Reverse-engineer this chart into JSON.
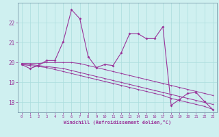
{
  "xlabel": "Windchill (Refroidissement éolien,°C)",
  "bg_color": "#cff0f0",
  "grid_color": "#aadddd",
  "line_color": "#993399",
  "spine_color": "#7799aa",
  "xlim": [
    -0.5,
    23.5
  ],
  "ylim": [
    17.5,
    23.0
  ],
  "yticks": [
    18,
    19,
    20,
    21,
    22
  ],
  "xticks": [
    0,
    1,
    2,
    3,
    4,
    5,
    6,
    7,
    8,
    9,
    10,
    11,
    12,
    13,
    14,
    15,
    16,
    17,
    18,
    19,
    20,
    21,
    22,
    23
  ],
  "series1": [
    19.9,
    19.7,
    19.85,
    20.1,
    20.1,
    21.05,
    22.65,
    22.2,
    20.3,
    19.75,
    19.9,
    19.85,
    20.5,
    21.45,
    21.45,
    21.2,
    21.2,
    21.8,
    17.85,
    18.15,
    18.45,
    18.5,
    18.05,
    17.65
  ],
  "series2": [
    19.95,
    19.95,
    19.95,
    20.0,
    20.0,
    20.0,
    20.0,
    19.95,
    19.85,
    19.75,
    19.65,
    19.55,
    19.45,
    19.35,
    19.25,
    19.15,
    19.05,
    18.95,
    18.85,
    18.75,
    18.65,
    18.55,
    18.45,
    18.35
  ],
  "series3": [
    19.95,
    19.9,
    19.85,
    19.8,
    19.75,
    19.7,
    19.6,
    19.5,
    19.4,
    19.3,
    19.2,
    19.1,
    19.0,
    18.9,
    18.8,
    18.7,
    18.6,
    18.5,
    18.4,
    18.3,
    18.2,
    18.1,
    18.0,
    17.9
  ],
  "series4": [
    19.9,
    19.85,
    19.8,
    19.75,
    19.65,
    19.55,
    19.45,
    19.35,
    19.25,
    19.15,
    19.05,
    18.95,
    18.85,
    18.75,
    18.65,
    18.55,
    18.45,
    18.35,
    18.2,
    18.1,
    18.0,
    17.9,
    17.8,
    17.65
  ]
}
